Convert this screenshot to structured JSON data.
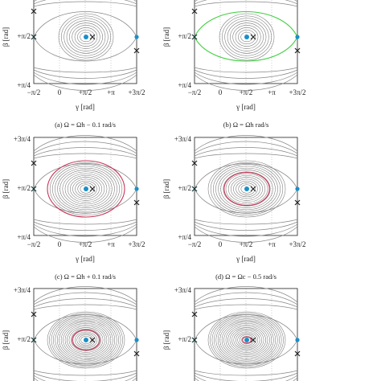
{
  "panels": [
    {
      "caption": "(a) Ω = Ωh − 0.1 rad/s",
      "x_axis": {
        "label": "γ [rad]",
        "ticks": [
          "−π/2",
          "0",
          "+π/2",
          "+π",
          "+3π/2"
        ]
      },
      "y_axis": {
        "label": "β [rad]",
        "ticks": [
          "+π/2",
          "+π/4"
        ]
      }
    },
    {
      "caption": "(b) Ω = Ωh rad/s",
      "x_axis": {
        "label": "γ [rad]",
        "ticks": [
          "−π/2",
          "0",
          "+π/2",
          "+π",
          "+3π/2"
        ]
      },
      "y_axis": {
        "label": "β [rad]",
        "ticks": [
          "+π/2",
          "+π/4"
        ]
      }
    },
    {
      "caption": "(c) Ω = Ωh + 0.1 rad/s",
      "x_axis": {
        "label": "γ [rad]",
        "ticks": [
          "−π/2",
          "0",
          "+π/2",
          "+π",
          "+3π/2"
        ]
      },
      "y_axis": {
        "label": "β [rad]",
        "ticks": [
          "+3π/4",
          "+π/2",
          "+π/4"
        ]
      }
    },
    {
      "caption": "(d) Ω = Ωc − 0.5 rad/s",
      "x_axis": {
        "label": "γ [rad]",
        "ticks": [
          "−π/2",
          "0",
          "+π/2",
          "+π",
          "+3π/2"
        ]
      },
      "y_axis": {
        "label": "β [rad]",
        "ticks": [
          "+3π/4",
          "+π/2",
          "+π/4"
        ]
      }
    },
    {
      "y_axis": {
        "label": "β [rad]",
        "ticks": [
          "+3π/4",
          "+π/2"
        ]
      }
    },
    {
      "y_axis": {
        "label": "β [rad]",
        "ticks": [
          "+3π/4",
          "+π/2"
        ]
      }
    }
  ]
}
